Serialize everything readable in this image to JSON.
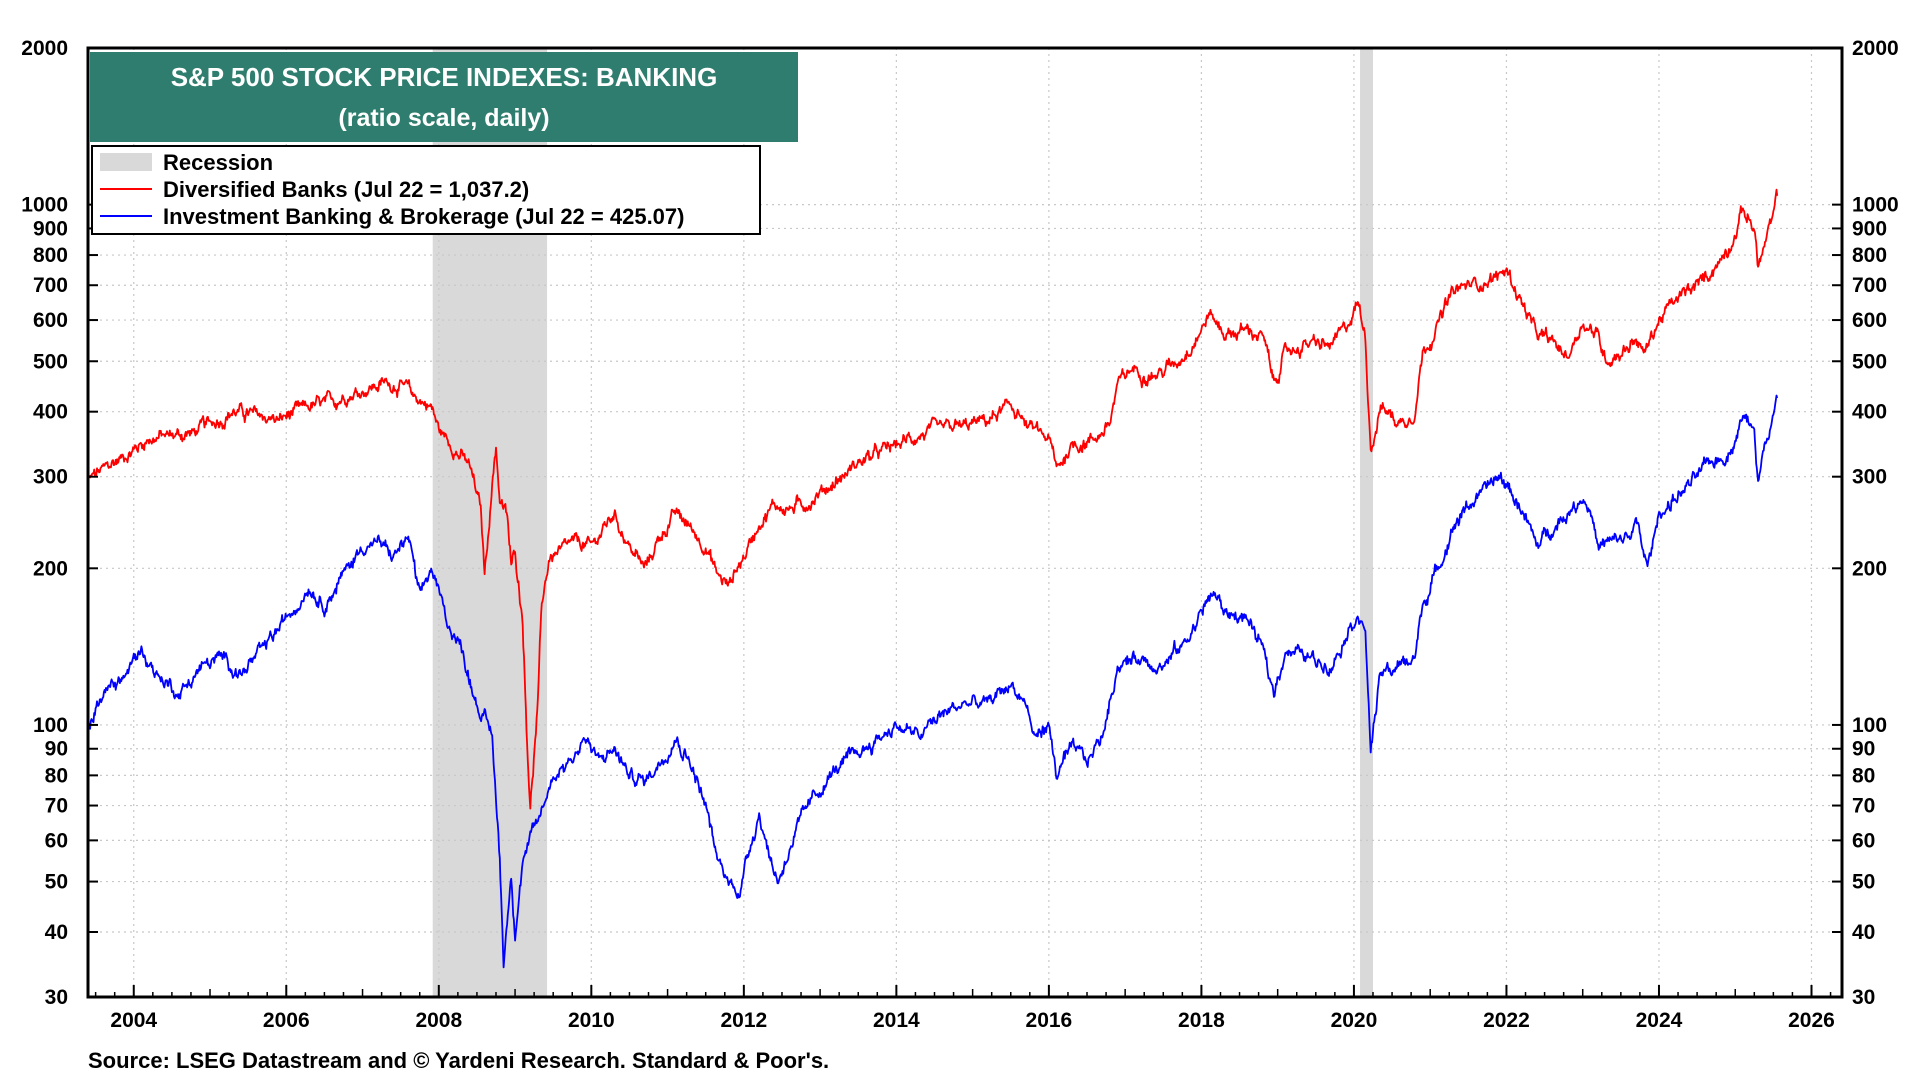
{
  "chart_data": {
    "type": "line",
    "title": "S&P 500 STOCK PRICE INDEXES: BANKING",
    "subtitle": "(ratio scale, daily)",
    "source": "Source: LSEG Datastream and © Yardeni Research. Standard & Poor's.",
    "y_scale": "log",
    "ylim": [
      30,
      2000
    ],
    "xlim": [
      2003.4,
      2026.4
    ],
    "x_ticks": [
      2004,
      2006,
      2008,
      2010,
      2012,
      2014,
      2016,
      2018,
      2020,
      2022,
      2024,
      2026
    ],
    "x_tick_labels": [
      "2004",
      "2006",
      "2008",
      "2010",
      "2012",
      "2014",
      "2016",
      "2018",
      "2020",
      "2022",
      "2024",
      "2026"
    ],
    "y_ticks": [
      30,
      40,
      50,
      60,
      70,
      80,
      90,
      100,
      200,
      300,
      400,
      500,
      600,
      700,
      800,
      900,
      1000,
      2000
    ],
    "y_tick_labels": [
      "30",
      "40",
      "50",
      "60",
      "70",
      "80",
      "90",
      "100",
      "200",
      "300",
      "400",
      "500",
      "600",
      "700",
      "800",
      "900",
      "1000",
      "2000"
    ],
    "grid": true,
    "legend": {
      "position": "top-left",
      "entries": [
        {
          "label": "Recession",
          "color": "#d9d9d9",
          "kind": "box"
        },
        {
          "label": "Diversified Banks (Jul 22 = 1,037.2)",
          "color": "#ff0000",
          "kind": "line"
        },
        {
          "label": "Investment Banking & Brokerage (Jul 22 = 425.07)",
          "color": "#0000ff",
          "kind": "line"
        }
      ]
    },
    "recessions": [
      [
        2007.92,
        2009.42
      ],
      [
        2020.08,
        2020.25
      ]
    ],
    "series": [
      {
        "name": "Diversified Banks (Jul 22 = 1,037.2)",
        "color": "#ff0000",
        "points": [
          [
            2003.4,
            295
          ],
          [
            2003.6,
            310
          ],
          [
            2003.9,
            330
          ],
          [
            2004.2,
            355
          ],
          [
            2004.5,
            360
          ],
          [
            2004.8,
            365
          ],
          [
            2005.0,
            380
          ],
          [
            2005.3,
            400
          ],
          [
            2005.6,
            395
          ],
          [
            2005.9,
            385
          ],
          [
            2006.2,
            405
          ],
          [
            2006.5,
            415
          ],
          [
            2006.8,
            430
          ],
          [
            2007.1,
            445
          ],
          [
            2007.3,
            455
          ],
          [
            2007.5,
            450
          ],
          [
            2007.7,
            425
          ],
          [
            2007.9,
            410
          ],
          [
            2008.0,
            370
          ],
          [
            2008.2,
            340
          ],
          [
            2008.4,
            315
          ],
          [
            2008.55,
            260
          ],
          [
            2008.6,
            195
          ],
          [
            2008.7,
            290
          ],
          [
            2008.75,
            345
          ],
          [
            2008.8,
            270
          ],
          [
            2008.9,
            250
          ],
          [
            2008.95,
            200
          ],
          [
            2009.0,
            215
          ],
          [
            2009.1,
            160
          ],
          [
            2009.15,
            100
          ],
          [
            2009.2,
            70
          ],
          [
            2009.3,
            110
          ],
          [
            2009.35,
            170
          ],
          [
            2009.45,
            210
          ],
          [
            2009.6,
            215
          ],
          [
            2009.8,
            225
          ],
          [
            2010.0,
            220
          ],
          [
            2010.3,
            255
          ],
          [
            2010.5,
            220
          ],
          [
            2010.7,
            200
          ],
          [
            2010.9,
            230
          ],
          [
            2011.1,
            255
          ],
          [
            2011.3,
            240
          ],
          [
            2011.5,
            220
          ],
          [
            2011.65,
            195
          ],
          [
            2011.8,
            185
          ],
          [
            2011.9,
            200
          ],
          [
            2012.0,
            210
          ],
          [
            2012.2,
            245
          ],
          [
            2012.4,
            265
          ],
          [
            2012.6,
            260
          ],
          [
            2012.8,
            265
          ],
          [
            2013.0,
            280
          ],
          [
            2013.3,
            300
          ],
          [
            2013.5,
            320
          ],
          [
            2013.8,
            335
          ],
          [
            2014.0,
            345
          ],
          [
            2014.3,
            360
          ],
          [
            2014.6,
            370
          ],
          [
            2014.9,
            375
          ],
          [
            2015.2,
            385
          ],
          [
            2015.5,
            410
          ],
          [
            2015.6,
            400
          ],
          [
            2015.7,
            375
          ],
          [
            2016.0,
            355
          ],
          [
            2016.1,
            310
          ],
          [
            2016.3,
            345
          ],
          [
            2016.6,
            355
          ],
          [
            2016.8,
            380
          ],
          [
            2016.9,
            450
          ],
          [
            2017.1,
            485
          ],
          [
            2017.4,
            470
          ],
          [
            2017.7,
            500
          ],
          [
            2018.0,
            575
          ],
          [
            2018.1,
            620
          ],
          [
            2018.3,
            565
          ],
          [
            2018.6,
            575
          ],
          [
            2018.8,
            560
          ],
          [
            2018.95,
            455
          ],
          [
            2019.1,
            520
          ],
          [
            2019.4,
            540
          ],
          [
            2019.7,
            535
          ],
          [
            2019.9,
            580
          ],
          [
            2020.05,
            650
          ],
          [
            2020.15,
            560
          ],
          [
            2020.22,
            340
          ],
          [
            2020.35,
            410
          ],
          [
            2020.6,
            380
          ],
          [
            2020.8,
            400
          ],
          [
            2020.9,
            520
          ],
          [
            2021.1,
            590
          ],
          [
            2021.3,
            680
          ],
          [
            2021.5,
            700
          ],
          [
            2021.7,
            710
          ],
          [
            2021.9,
            730
          ],
          [
            2022.0,
            750
          ],
          [
            2022.2,
            650
          ],
          [
            2022.4,
            560
          ],
          [
            2022.6,
            545
          ],
          [
            2022.8,
            510
          ],
          [
            2023.0,
            595
          ],
          [
            2023.2,
            560
          ],
          [
            2023.3,
            505
          ],
          [
            2023.5,
            520
          ],
          [
            2023.7,
            555
          ],
          [
            2023.8,
            515
          ],
          [
            2024.0,
            600
          ],
          [
            2024.2,
            650
          ],
          [
            2024.5,
            700
          ],
          [
            2024.8,
            780
          ],
          [
            2025.0,
            880
          ],
          [
            2025.1,
            980
          ],
          [
            2025.25,
            900
          ],
          [
            2025.3,
            760
          ],
          [
            2025.4,
            850
          ],
          [
            2025.5,
            950
          ],
          [
            2025.55,
            1040
          ]
        ]
      },
      {
        "name": "Investment Banking & Brokerage (Jul 22 = 425.07)",
        "color": "#0000ff",
        "points": [
          [
            2003.4,
            100
          ],
          [
            2003.6,
            115
          ],
          [
            2003.9,
            125
          ],
          [
            2004.1,
            140
          ],
          [
            2004.3,
            125
          ],
          [
            2004.6,
            115
          ],
          [
            2004.9,
            130
          ],
          [
            2005.2,
            135
          ],
          [
            2005.4,
            125
          ],
          [
            2005.7,
            140
          ],
          [
            2006.0,
            160
          ],
          [
            2006.3,
            185
          ],
          [
            2006.5,
            170
          ],
          [
            2006.8,
            200
          ],
          [
            2007.0,
            220
          ],
          [
            2007.2,
            225
          ],
          [
            2007.4,
            210
          ],
          [
            2007.6,
            230
          ],
          [
            2007.75,
            175
          ],
          [
            2007.9,
            200
          ],
          [
            2008.1,
            160
          ],
          [
            2008.3,
            140
          ],
          [
            2008.5,
            110
          ],
          [
            2008.7,
            95
          ],
          [
            2008.8,
            55
          ],
          [
            2008.85,
            35
          ],
          [
            2008.95,
            52
          ],
          [
            2009.0,
            40
          ],
          [
            2009.1,
            55
          ],
          [
            2009.3,
            65
          ],
          [
            2009.5,
            80
          ],
          [
            2009.8,
            88
          ],
          [
            2009.9,
            95
          ],
          [
            2010.1,
            85
          ],
          [
            2010.3,
            90
          ],
          [
            2010.5,
            80
          ],
          [
            2010.7,
            78
          ],
          [
            2010.9,
            85
          ],
          [
            2011.1,
            95
          ],
          [
            2011.3,
            85
          ],
          [
            2011.5,
            70
          ],
          [
            2011.65,
            55
          ],
          [
            2011.8,
            50
          ],
          [
            2011.95,
            48
          ],
          [
            2012.1,
            60
          ],
          [
            2012.2,
            68
          ],
          [
            2012.35,
            55
          ],
          [
            2012.45,
            50
          ],
          [
            2012.6,
            58
          ],
          [
            2012.8,
            68
          ],
          [
            2013.0,
            75
          ],
          [
            2013.2,
            82
          ],
          [
            2013.5,
            88
          ],
          [
            2013.8,
            95
          ],
          [
            2014.0,
            100
          ],
          [
            2014.3,
            95
          ],
          [
            2014.6,
            105
          ],
          [
            2014.9,
            110
          ],
          [
            2015.2,
            110
          ],
          [
            2015.5,
            120
          ],
          [
            2015.7,
            110
          ],
          [
            2015.8,
            95
          ],
          [
            2016.0,
            100
          ],
          [
            2016.1,
            80
          ],
          [
            2016.3,
            90
          ],
          [
            2016.5,
            85
          ],
          [
            2016.7,
            95
          ],
          [
            2016.9,
            130
          ],
          [
            2017.2,
            135
          ],
          [
            2017.5,
            130
          ],
          [
            2017.8,
            145
          ],
          [
            2018.0,
            165
          ],
          [
            2018.15,
            180
          ],
          [
            2018.3,
            165
          ],
          [
            2018.6,
            160
          ],
          [
            2018.8,
            140
          ],
          [
            2018.95,
            115
          ],
          [
            2019.1,
            140
          ],
          [
            2019.4,
            135
          ],
          [
            2019.7,
            130
          ],
          [
            2019.9,
            150
          ],
          [
            2020.05,
            165
          ],
          [
            2020.15,
            150
          ],
          [
            2020.22,
            90
          ],
          [
            2020.35,
            125
          ],
          [
            2020.6,
            130
          ],
          [
            2020.8,
            135
          ],
          [
            2020.9,
            170
          ],
          [
            2021.1,
            200
          ],
          [
            2021.3,
            240
          ],
          [
            2021.5,
            265
          ],
          [
            2021.7,
            280
          ],
          [
            2021.9,
            300
          ],
          [
            2022.0,
            290
          ],
          [
            2022.2,
            260
          ],
          [
            2022.4,
            220
          ],
          [
            2022.6,
            240
          ],
          [
            2022.8,
            255
          ],
          [
            2023.0,
            275
          ],
          [
            2023.1,
            260
          ],
          [
            2023.2,
            220
          ],
          [
            2023.4,
            225
          ],
          [
            2023.6,
            230
          ],
          [
            2023.7,
            245
          ],
          [
            2023.85,
            200
          ],
          [
            2024.0,
            255
          ],
          [
            2024.3,
            280
          ],
          [
            2024.5,
            300
          ],
          [
            2024.7,
            320
          ],
          [
            2024.9,
            330
          ],
          [
            2025.1,
            390
          ],
          [
            2025.25,
            380
          ],
          [
            2025.3,
            300
          ],
          [
            2025.4,
            350
          ],
          [
            2025.5,
            390
          ],
          [
            2025.55,
            425
          ]
        ]
      }
    ]
  }
}
